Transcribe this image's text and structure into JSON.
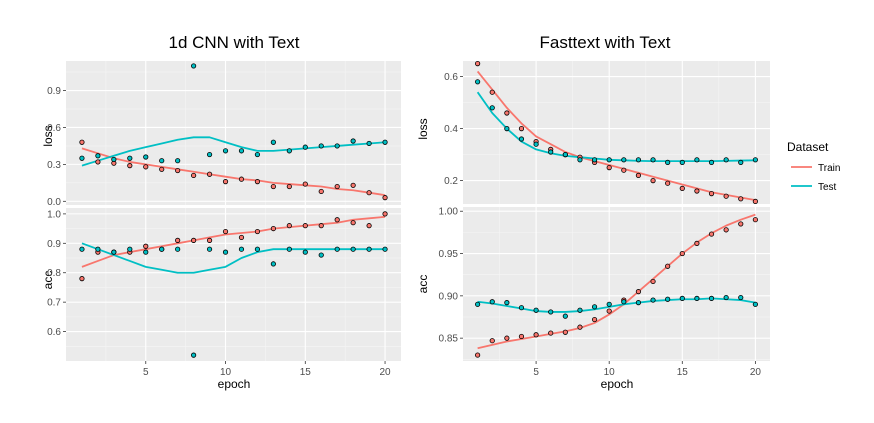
{
  "chart_data": [
    {
      "type": "line",
      "title": "1d CNN with Text",
      "xlabel": "epoch",
      "x": [
        1,
        2,
        3,
        4,
        5,
        6,
        7,
        8,
        9,
        10,
        11,
        12,
        13,
        14,
        15,
        16,
        17,
        18,
        19,
        20
      ],
      "xlim": [
        0,
        21
      ],
      "xticks": [
        5,
        10,
        15,
        20
      ],
      "facets": [
        {
          "name": "loss",
          "ylim": [
            -0.03,
            1.14
          ],
          "yticks": [
            "0.0",
            "0.3",
            "0.6",
            "0.9"
          ],
          "series": [
            {
              "name": "Train",
              "values": [
                0.48,
                0.32,
                0.31,
                0.29,
                0.28,
                0.26,
                0.25,
                0.21,
                0.22,
                0.16,
                0.18,
                0.16,
                0.12,
                0.12,
                0.14,
                0.08,
                0.12,
                0.13,
                0.07,
                0.03
              ],
              "smooth": [
                0.43,
                0.39,
                0.35,
                0.32,
                0.3,
                0.28,
                0.26,
                0.24,
                0.22,
                0.2,
                0.18,
                0.17,
                0.15,
                0.14,
                0.13,
                0.12,
                0.1,
                0.09,
                0.07,
                0.05
              ]
            },
            {
              "name": "Test",
              "values": [
                0.35,
                0.37,
                0.34,
                0.35,
                0.36,
                0.33,
                0.33,
                1.1,
                0.38,
                0.41,
                0.41,
                0.38,
                0.48,
                0.41,
                0.44,
                0.45,
                0.45,
                0.49,
                0.47,
                0.48
              ],
              "smooth": [
                0.29,
                0.33,
                0.37,
                0.41,
                0.44,
                0.47,
                0.5,
                0.52,
                0.52,
                0.48,
                0.44,
                0.41,
                0.41,
                0.42,
                0.43,
                0.44,
                0.45,
                0.46,
                0.47,
                0.48
              ]
            }
          ]
        },
        {
          "name": "acc",
          "ylim": [
            0.5,
            1.02
          ],
          "yticks": [
            "0.6",
            "0.7",
            "0.8",
            "0.9",
            "1.0"
          ],
          "series": [
            {
              "name": "Train",
              "values": [
                0.78,
                0.87,
                0.87,
                0.87,
                0.89,
                0.88,
                0.91,
                0.91,
                0.91,
                0.94,
                0.92,
                0.94,
                0.95,
                0.96,
                0.96,
                0.96,
                0.98,
                0.97,
                0.96,
                1.0
              ],
              "smooth": [
                0.82,
                0.84,
                0.86,
                0.87,
                0.88,
                0.89,
                0.9,
                0.91,
                0.92,
                0.93,
                0.935,
                0.94,
                0.95,
                0.955,
                0.96,
                0.965,
                0.97,
                0.98,
                0.985,
                0.99
              ]
            },
            {
              "name": "Test",
              "values": [
                0.88,
                0.88,
                0.87,
                0.88,
                0.87,
                0.88,
                0.88,
                0.52,
                0.88,
                0.87,
                0.88,
                0.88,
                0.83,
                0.88,
                0.87,
                0.86,
                0.88,
                0.88,
                0.88,
                0.88
              ],
              "smooth": [
                0.9,
                0.88,
                0.86,
                0.84,
                0.82,
                0.81,
                0.8,
                0.8,
                0.81,
                0.82,
                0.85,
                0.87,
                0.88,
                0.88,
                0.88,
                0.88,
                0.88,
                0.88,
                0.88,
                0.88
              ]
            }
          ]
        }
      ]
    },
    {
      "type": "line",
      "title": "Fasttext with Text",
      "xlabel": "epoch",
      "x": [
        1,
        2,
        3,
        4,
        5,
        6,
        7,
        8,
        9,
        10,
        11,
        12,
        13,
        14,
        15,
        16,
        17,
        18,
        19,
        20
      ],
      "xlim": [
        0,
        21
      ],
      "xticks": [
        5,
        10,
        15,
        20
      ],
      "facets": [
        {
          "name": "loss",
          "ylim": [
            0.11,
            0.66
          ],
          "yticks": [
            "0.2",
            "0.4",
            "0.6"
          ],
          "series": [
            {
              "name": "Train",
              "values": [
                0.65,
                0.54,
                0.46,
                0.4,
                0.35,
                0.32,
                0.3,
                0.29,
                0.27,
                0.25,
                0.24,
                0.22,
                0.2,
                0.19,
                0.17,
                0.16,
                0.15,
                0.14,
                0.13,
                0.12
              ],
              "smooth": [
                0.62,
                0.55,
                0.48,
                0.42,
                0.37,
                0.34,
                0.31,
                0.29,
                0.275,
                0.26,
                0.245,
                0.23,
                0.215,
                0.2,
                0.185,
                0.17,
                0.155,
                0.145,
                0.135,
                0.125
              ]
            },
            {
              "name": "Test",
              "values": [
                0.58,
                0.48,
                0.4,
                0.36,
                0.34,
                0.31,
                0.3,
                0.28,
                0.28,
                0.28,
                0.28,
                0.28,
                0.28,
                0.27,
                0.27,
                0.28,
                0.27,
                0.28,
                0.27,
                0.28
              ],
              "smooth": [
                0.54,
                0.46,
                0.4,
                0.35,
                0.32,
                0.305,
                0.295,
                0.29,
                0.285,
                0.28,
                0.278,
                0.276,
                0.275,
                0.275,
                0.275,
                0.275,
                0.275,
                0.276,
                0.277,
                0.278
              ]
            }
          ]
        },
        {
          "name": "acc",
          "ylim": [
            0.823,
            1.005
          ],
          "yticks": [
            "0.85",
            "0.90",
            "0.95",
            "1.00"
          ],
          "series": [
            {
              "name": "Train",
              "values": [
                0.83,
                0.847,
                0.85,
                0.852,
                0.854,
                0.856,
                0.857,
                0.863,
                0.872,
                0.882,
                0.895,
                0.905,
                0.917,
                0.935,
                0.95,
                0.962,
                0.973,
                0.978,
                0.985,
                0.99
              ],
              "smooth": [
                0.838,
                0.842,
                0.846,
                0.849,
                0.852,
                0.855,
                0.858,
                0.862,
                0.868,
                0.878,
                0.89,
                0.905,
                0.92,
                0.935,
                0.95,
                0.963,
                0.974,
                0.983,
                0.99,
                0.996
              ]
            },
            {
              "name": "Test",
              "values": [
                0.89,
                0.893,
                0.892,
                0.886,
                0.883,
                0.881,
                0.876,
                0.883,
                0.887,
                0.89,
                0.893,
                0.892,
                0.895,
                0.896,
                0.897,
                0.897,
                0.897,
                0.898,
                0.898,
                0.89
              ],
              "smooth": [
                0.893,
                0.891,
                0.888,
                0.885,
                0.882,
                0.881,
                0.881,
                0.882,
                0.884,
                0.887,
                0.89,
                0.892,
                0.894,
                0.895,
                0.896,
                0.896,
                0.897,
                0.896,
                0.895,
                0.892
              ]
            }
          ]
        }
      ]
    }
  ],
  "legend": {
    "title": "Dataset",
    "items": [
      {
        "label": "Train",
        "color": "#F8766D"
      },
      {
        "label": "Test",
        "color": "#00BFC4"
      }
    ]
  },
  "colors": {
    "panel_bg": "#EBEBEB",
    "grid_major": "#FFFFFF",
    "grid_minor": "#F5F5F5",
    "Train": "#F8766D",
    "Test": "#00BFC4"
  }
}
